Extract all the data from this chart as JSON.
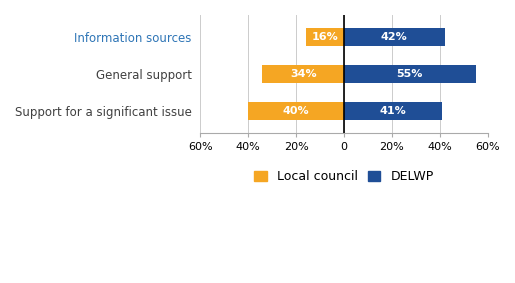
{
  "categories": [
    "Support for a significant issue",
    "General support",
    "Information sources"
  ],
  "local_council": [
    40,
    34,
    16
  ],
  "delwp": [
    41,
    55,
    42
  ],
  "local_council_color": "#F5A623",
  "delwp_color": "#1F4E96",
  "xlim": [
    -60,
    60
  ],
  "xticks": [
    -60,
    -40,
    -20,
    0,
    20,
    40,
    60
  ],
  "xticklabels": [
    "60%",
    "40%",
    "20%",
    "0",
    "20%",
    "40%",
    "60%"
  ],
  "bar_height": 0.5,
  "legend_labels": [
    "Local council",
    "DELWP"
  ],
  "category_fontsize": 8.5,
  "tick_fontsize": 8,
  "legend_fontsize": 9,
  "info_sources_label_color": "#2E75B6",
  "default_label_color": "#404040",
  "background_color": "#FFFFFF"
}
